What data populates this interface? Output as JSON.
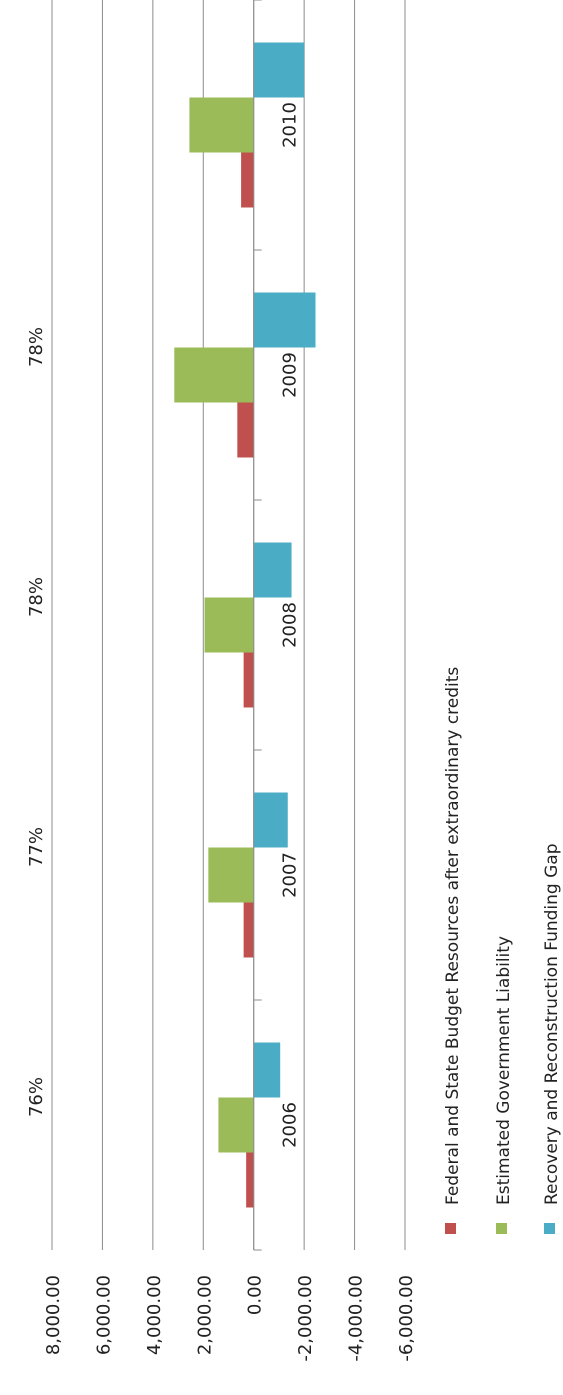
{
  "chart_data": {
    "type": "bar",
    "orientation": "horizontal",
    "categories": [
      "2006",
      "2007",
      "2008",
      "2009",
      "2010"
    ],
    "series": [
      {
        "name": "Federal and State Budget Resources after extraordinary credits",
        "color": "#c0504d",
        "values": [
          300,
          400,
          400,
          650,
          500
        ]
      },
      {
        "name": "Estimated Government Liability",
        "color": "#9bbb59",
        "values": [
          1400,
          1800,
          1950,
          3150,
          2550
        ]
      },
      {
        "name": "Recovery and Reconstruction Funding Gap",
        "color": "#4bacc6",
        "values": [
          -1050,
          -1350,
          -1500,
          -2450,
          -2000
        ]
      }
    ],
    "percent_labels": [
      "76%",
      "77%",
      "78%",
      "78%",
      ""
    ],
    "value_ticks": [
      "8,000.00",
      "6,000.00",
      "4,000.00",
      "2,000.00",
      "0.00",
      "-2,000.00",
      "-4,000.00",
      "-6,000.00"
    ],
    "ylim": [
      -6000,
      8000
    ],
    "grid": true,
    "legend_position": "right"
  }
}
